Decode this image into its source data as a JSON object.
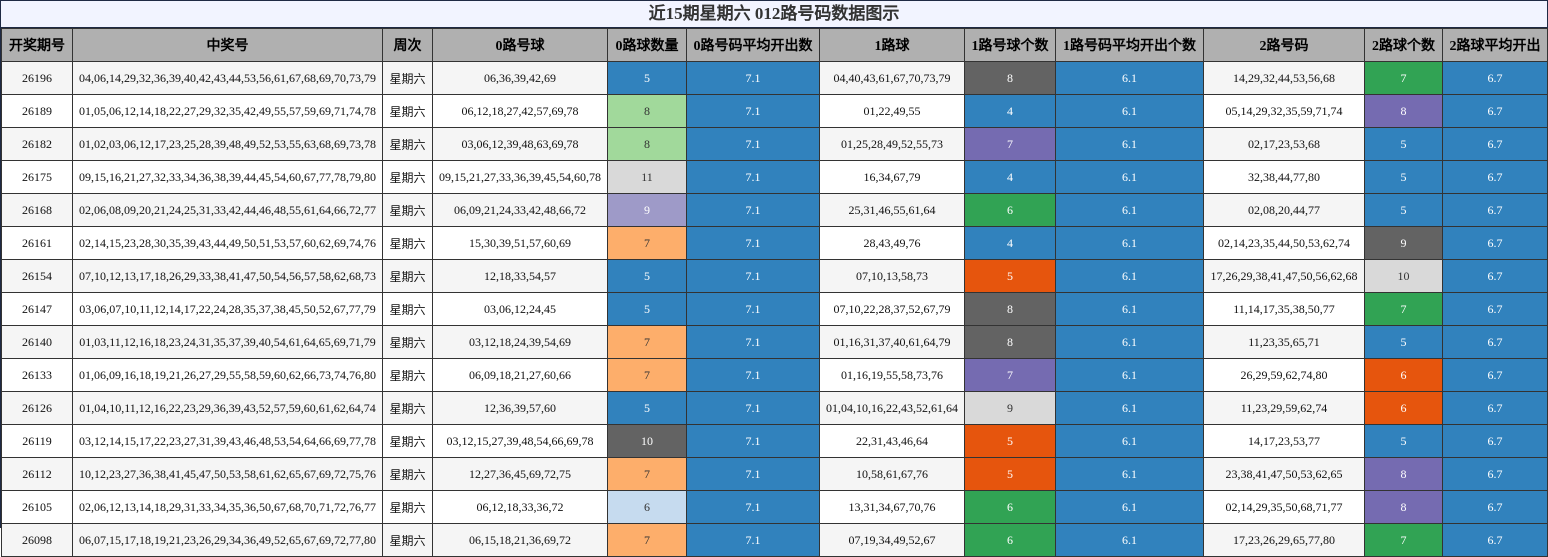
{
  "title": "近15期星期六 012路号码数据图示",
  "headers": [
    "开奖期号",
    "中奖号",
    "周次",
    "0路号球",
    "0路球数量",
    "0路号码平均开出数",
    "1路球",
    "1路号球个数",
    "1路号码平均开出个数",
    "2路号码",
    "2路球个数",
    "2路球平均开出"
  ],
  "colors": {
    "header_bg": "#b0b0b0",
    "avg_blue": "#3182bd",
    "row_alt": "#f5f5f5"
  },
  "chart_data": {
    "type": "table",
    "title": "近15期星期六 012路号码数据图示",
    "rows": [
      {
        "issue": "26196",
        "numbers": "04,06,14,29,32,36,39,40,42,43,44,53,56,61,67,68,69,70,73,79",
        "weekday": "星期六",
        "r0": "06,36,39,42,69",
        "c0": "5",
        "a0": "7.1",
        "r1": "04,40,43,61,67,70,73,79",
        "c1": "8",
        "a1": "6.1",
        "r2": "14,29,32,44,53,56,68",
        "c2": "7",
        "a2": "6.7"
      },
      {
        "issue": "26189",
        "numbers": "01,05,06,12,14,18,22,27,29,32,35,42,49,55,57,59,69,71,74,78",
        "weekday": "星期六",
        "r0": "06,12,18,27,42,57,69,78",
        "c0": "8",
        "a0": "7.1",
        "r1": "01,22,49,55",
        "c1": "4",
        "a1": "6.1",
        "r2": "05,14,29,32,35,59,71,74",
        "c2": "8",
        "a2": "6.7"
      },
      {
        "issue": "26182",
        "numbers": "01,02,03,06,12,17,23,25,28,39,48,49,52,53,55,63,68,69,73,78",
        "weekday": "星期六",
        "r0": "03,06,12,39,48,63,69,78",
        "c0": "8",
        "a0": "7.1",
        "r1": "01,25,28,49,52,55,73",
        "c1": "7",
        "a1": "6.1",
        "r2": "02,17,23,53,68",
        "c2": "5",
        "a2": "6.7"
      },
      {
        "issue": "26175",
        "numbers": "09,15,16,21,27,32,33,34,36,38,39,44,45,54,60,67,77,78,79,80",
        "weekday": "星期六",
        "r0": "09,15,21,27,33,36,39,45,54,60,78",
        "c0": "11",
        "a0": "7.1",
        "r1": "16,34,67,79",
        "c1": "4",
        "a1": "6.1",
        "r2": "32,38,44,77,80",
        "c2": "5",
        "a2": "6.7"
      },
      {
        "issue": "26168",
        "numbers": "02,06,08,09,20,21,24,25,31,33,42,44,46,48,55,61,64,66,72,77",
        "weekday": "星期六",
        "r0": "06,09,21,24,33,42,48,66,72",
        "c0": "9",
        "a0": "7.1",
        "r1": "25,31,46,55,61,64",
        "c1": "6",
        "a1": "6.1",
        "r2": "02,08,20,44,77",
        "c2": "5",
        "a2": "6.7"
      },
      {
        "issue": "26161",
        "numbers": "02,14,15,23,28,30,35,39,43,44,49,50,51,53,57,60,62,69,74,76",
        "weekday": "星期六",
        "r0": "15,30,39,51,57,60,69",
        "c0": "7",
        "a0": "7.1",
        "r1": "28,43,49,76",
        "c1": "4",
        "a1": "6.1",
        "r2": "02,14,23,35,44,50,53,62,74",
        "c2": "9",
        "a2": "6.7"
      },
      {
        "issue": "26154",
        "numbers": "07,10,12,13,17,18,26,29,33,38,41,47,50,54,56,57,58,62,68,73",
        "weekday": "星期六",
        "r0": "12,18,33,54,57",
        "c0": "5",
        "a0": "7.1",
        "r1": "07,10,13,58,73",
        "c1": "5",
        "a1": "6.1",
        "r2": "17,26,29,38,41,47,50,56,62,68",
        "c2": "10",
        "a2": "6.7"
      },
      {
        "issue": "26147",
        "numbers": "03,06,07,10,11,12,14,17,22,24,28,35,37,38,45,50,52,67,77,79",
        "weekday": "星期六",
        "r0": "03,06,12,24,45",
        "c0": "5",
        "a0": "7.1",
        "r1": "07,10,22,28,37,52,67,79",
        "c1": "8",
        "a1": "6.1",
        "r2": "11,14,17,35,38,50,77",
        "c2": "7",
        "a2": "6.7"
      },
      {
        "issue": "26140",
        "numbers": "01,03,11,12,16,18,23,24,31,35,37,39,40,54,61,64,65,69,71,79",
        "weekday": "星期六",
        "r0": "03,12,18,24,39,54,69",
        "c0": "7",
        "a0": "7.1",
        "r1": "01,16,31,37,40,61,64,79",
        "c1": "8",
        "a1": "6.1",
        "r2": "11,23,35,65,71",
        "c2": "5",
        "a2": "6.7"
      },
      {
        "issue": "26133",
        "numbers": "01,06,09,16,18,19,21,26,27,29,55,58,59,60,62,66,73,74,76,80",
        "weekday": "星期六",
        "r0": "06,09,18,21,27,60,66",
        "c0": "7",
        "a0": "7.1",
        "r1": "01,16,19,55,58,73,76",
        "c1": "7",
        "a1": "6.1",
        "r2": "26,29,59,62,74,80",
        "c2": "6",
        "a2": "6.7"
      },
      {
        "issue": "26126",
        "numbers": "01,04,10,11,12,16,22,23,29,36,39,43,52,57,59,60,61,62,64,74",
        "weekday": "星期六",
        "r0": "12,36,39,57,60",
        "c0": "5",
        "a0": "7.1",
        "r1": "01,04,10,16,22,43,52,61,64",
        "c1": "9",
        "a1": "6.1",
        "r2": "11,23,29,59,62,74",
        "c2": "6",
        "a2": "6.7"
      },
      {
        "issue": "26119",
        "numbers": "03,12,14,15,17,22,23,27,31,39,43,46,48,53,54,64,66,69,77,78",
        "weekday": "星期六",
        "r0": "03,12,15,27,39,48,54,66,69,78",
        "c0": "10",
        "a0": "7.1",
        "r1": "22,31,43,46,64",
        "c1": "5",
        "a1": "6.1",
        "r2": "14,17,23,53,77",
        "c2": "5",
        "a2": "6.7"
      },
      {
        "issue": "26112",
        "numbers": "10,12,23,27,36,38,41,45,47,50,53,58,61,62,65,67,69,72,75,76",
        "weekday": "星期六",
        "r0": "12,27,36,45,69,72,75",
        "c0": "7",
        "a0": "7.1",
        "r1": "10,58,61,67,76",
        "c1": "5",
        "a1": "6.1",
        "r2": "23,38,41,47,50,53,62,65",
        "c2": "8",
        "a2": "6.7"
      },
      {
        "issue": "26105",
        "numbers": "02,06,12,13,14,18,29,31,33,34,35,36,50,67,68,70,71,72,76,77",
        "weekday": "星期六",
        "r0": "06,12,18,33,36,72",
        "c0": "6",
        "a0": "7.1",
        "r1": "13,31,34,67,70,76",
        "c1": "6",
        "a1": "6.1",
        "r2": "02,14,29,35,50,68,71,77",
        "c2": "8",
        "a2": "6.7"
      },
      {
        "issue": "26098",
        "numbers": "06,07,15,17,18,19,21,23,26,29,34,36,49,52,65,67,69,72,77,80",
        "weekday": "星期六",
        "r0": "06,15,18,21,36,69,72",
        "c0": "7",
        "a0": "7.1",
        "r1": "07,19,34,49,52,67",
        "c1": "6",
        "a1": "6.1",
        "r2": "17,23,26,29,65,77,80",
        "c2": "7",
        "a2": "6.7"
      }
    ],
    "count_color_scale": {
      "4": "#3182bd",
      "5": "#3182bd",
      "6": "#31a354",
      "7": "#756bb1",
      "8": "#636363",
      "9": "#d9d9d9",
      "10": "#d9d9d9",
      "11": "#d9d9d9"
    },
    "count_color_scale_c0": {
      "5": "#3182bd",
      "6": "#c6dbef",
      "7": "#fdae6b",
      "8": "#a1d99b",
      "9": "#9e9ac8",
      "10": "#636363",
      "11": "#d9d9d9"
    },
    "count_color_scale_c2": {
      "5": "#3182bd",
      "6": "#e6550d",
      "7": "#31a354",
      "8": "#756bb1",
      "9": "#636363",
      "10": "#d9d9d9"
    },
    "count_color_scale_c1": {
      "4": "#3182bd",
      "5": "#e6550d",
      "6": "#31a354",
      "7": "#756bb1",
      "8": "#636363",
      "9": "#d9d9d9"
    }
  }
}
